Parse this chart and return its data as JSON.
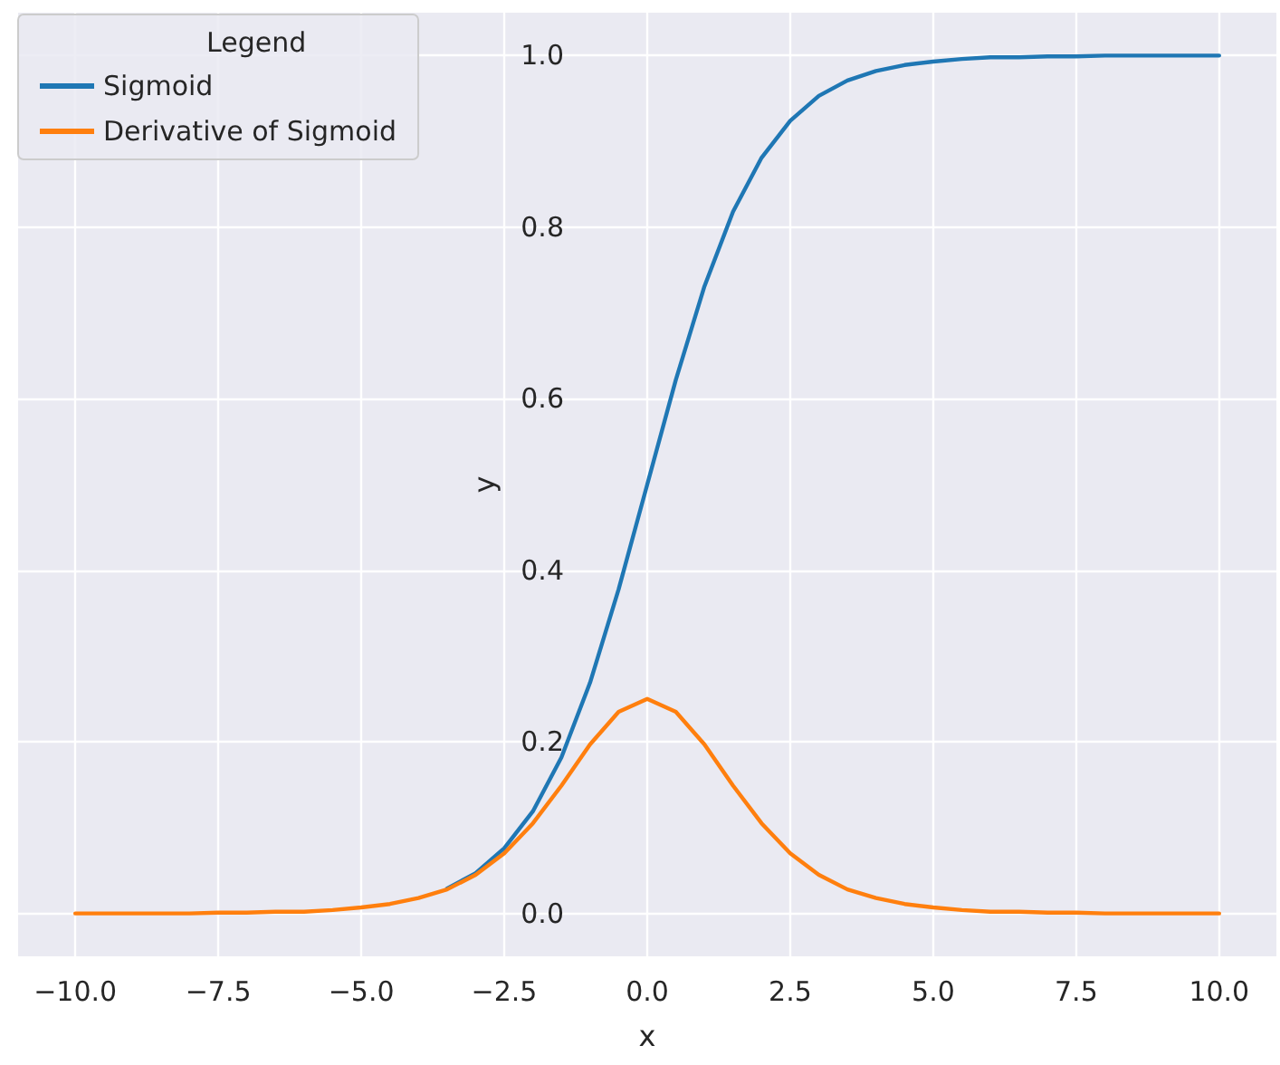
{
  "chart_data": {
    "type": "line",
    "xlabel": "x",
    "ylabel": "y",
    "legend_title": "Legend",
    "legend": "top left",
    "grid": true,
    "marker": "none",
    "line_style": "solid",
    "x": [
      -10,
      -9.5,
      -9,
      -8.5,
      -8,
      -7.5,
      -7,
      -6.5,
      -6,
      -5.5,
      -5,
      -4.5,
      -4,
      -3.5,
      -3,
      -2.5,
      -2,
      -1.5,
      -1,
      -0.5,
      0,
      0.5,
      1,
      1.5,
      2,
      2.5,
      3,
      3.5,
      4,
      4.5,
      5,
      5.5,
      6,
      6.5,
      7,
      7.5,
      8,
      8.5,
      9,
      9.5,
      10
    ],
    "series": [
      {
        "name": "Sigmoid",
        "color": "#1f77b4",
        "values": [
          null,
          null,
          null,
          null,
          null,
          null,
          null,
          null,
          null,
          null,
          null,
          null,
          null,
          0.029,
          0.047,
          0.076,
          0.119,
          0.182,
          0.269,
          0.378,
          0.5,
          0.622,
          0.731,
          0.818,
          0.881,
          0.924,
          0.953,
          0.971,
          0.982,
          0.989,
          0.993,
          0.996,
          0.998,
          0.998,
          0.999,
          0.999,
          1.0,
          1.0,
          1.0,
          1.0,
          1.0
        ]
      },
      {
        "name": "Derivative of Sigmoid",
        "color": "#ff7f0e",
        "values": [
          0.0,
          0.0,
          0.0,
          0.0,
          0.0,
          0.001,
          0.001,
          0.002,
          0.002,
          0.004,
          0.007,
          0.011,
          0.018,
          0.028,
          0.045,
          0.07,
          0.105,
          0.149,
          0.197,
          0.235,
          0.25,
          0.235,
          0.197,
          0.149,
          0.105,
          0.07,
          0.045,
          0.028,
          0.018,
          0.011,
          0.007,
          0.004,
          0.002,
          0.002,
          0.001,
          0.001,
          0.0,
          0.0,
          0.0,
          0.0,
          0.0
        ]
      }
    ],
    "xlim": [
      -11,
      11
    ],
    "xticks": [
      {
        "value": -10,
        "label": "−10.0"
      },
      {
        "value": -7.5,
        "label": "−7.5"
      },
      {
        "value": -5,
        "label": "−5.0"
      },
      {
        "value": -2.5,
        "label": "−2.5"
      },
      {
        "value": 0,
        "label": "0.0"
      },
      {
        "value": 2.5,
        "label": "2.5"
      },
      {
        "value": 5,
        "label": "5.0"
      },
      {
        "value": 7.5,
        "label": "7.5"
      },
      {
        "value": 10,
        "label": "10.0"
      }
    ],
    "ylim": [
      -0.05,
      1.05
    ],
    "yticks": [
      {
        "value": 0,
        "label": "0.0"
      },
      {
        "value": 0.2,
        "label": "0.2"
      },
      {
        "value": 0.4,
        "label": "0.4"
      },
      {
        "value": 0.6,
        "label": "0.6"
      },
      {
        "value": 0.8,
        "label": "0.8"
      },
      {
        "value": 1,
        "label": "1.0"
      }
    ]
  }
}
